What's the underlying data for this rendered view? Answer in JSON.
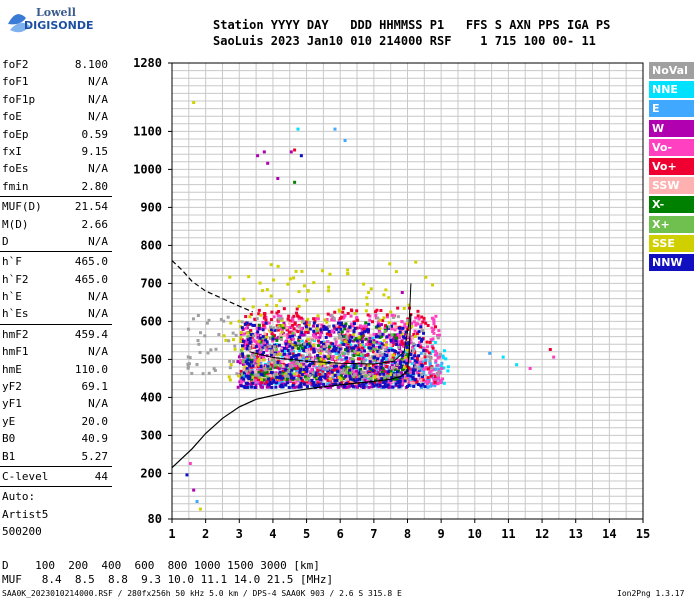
{
  "logo": {
    "line1": "Lowell",
    "line2": "DIGISONDE"
  },
  "header": {
    "line1": "Station YYYY DAY   DDD HHMMSS P1   FFS S AXN PPS IGA PS",
    "line2": "SaoLuis 2023 Jan10 010 214000 RSF    1 715 100 00- 11"
  },
  "params": {
    "group1": [
      {
        "label": "foF2",
        "value": "8.100"
      },
      {
        "label": "foF1",
        "value": "N/A"
      },
      {
        "label": "foF1p",
        "value": "N/A"
      },
      {
        "label": "foE",
        "value": "N/A"
      },
      {
        "label": "foEp",
        "value": "0.59"
      },
      {
        "label": "fxI",
        "value": "9.15"
      },
      {
        "label": "foEs",
        "value": "N/A"
      },
      {
        "label": "fmin",
        "value": "2.80"
      }
    ],
    "group2": [
      {
        "label": "MUF(D)",
        "value": "21.54"
      },
      {
        "label": "M(D)",
        "value": "2.66"
      },
      {
        "label": "D",
        "value": "N/A"
      }
    ],
    "group3": [
      {
        "label": "h`F",
        "value": "465.0"
      },
      {
        "label": "h`F2",
        "value": "465.0"
      },
      {
        "label": "h`E",
        "value": "N/A"
      },
      {
        "label": "h`Es",
        "value": "N/A"
      }
    ],
    "group4": [
      {
        "label": "hmF2",
        "value": "459.4"
      },
      {
        "label": "hmF1",
        "value": "N/A"
      },
      {
        "label": "hmE",
        "value": "110.0"
      },
      {
        "label": "yF2",
        "value": "69.1"
      },
      {
        "label": "yF1",
        "value": "N/A"
      },
      {
        "label": "yE",
        "value": "20.0"
      },
      {
        "label": "B0",
        "value": "40.9"
      },
      {
        "label": "B1",
        "value": "5.27"
      }
    ],
    "group5": [
      {
        "label": "C-level",
        "value": "44"
      }
    ],
    "auto": [
      "Auto:",
      "Artist5",
      "500200"
    ]
  },
  "legend": [
    {
      "label": "NoVal",
      "color": "#a0a0a0"
    },
    {
      "label": "NNE",
      "color": "#00e0ff"
    },
    {
      "label": "E",
      "color": "#40a8ff"
    },
    {
      "label": "W",
      "color": "#b000b0"
    },
    {
      "label": "Vo-",
      "color": "#ff40c0"
    },
    {
      "label": "Vo+",
      "color": "#f00030"
    },
    {
      "label": "SSW",
      "color": "#ffb0b0"
    },
    {
      "label": "X-",
      "color": "#008000"
    },
    {
      "label": "X+",
      "color": "#70c050"
    },
    {
      "label": "SSE",
      "color": "#d0d000"
    },
    {
      "label": "NNW",
      "color": "#1010c0"
    }
  ],
  "footer": {
    "d_row": "D    100  200  400  600  800 1000 1500 3000 [km]",
    "muf_row": "MUF   8.4  8.5  8.8  9.3 10.0 11.1 14.0 21.5 [MHz]",
    "file_info": "SAA0K_2023010214000.RSF / 280fx256h 50 kHz 5.0 km / DPS-4 SAA0K 903 / 2.6 S 315.8 E",
    "version": "Ion2Png 1.3.17"
  },
  "chart_data": {
    "type": "scatter",
    "xlim": [
      1,
      15
    ],
    "ylim": [
      80,
      1280
    ],
    "xticks": [
      1,
      2,
      3,
      4,
      5,
      6,
      7,
      8,
      9,
      10,
      11,
      12,
      13,
      14,
      15
    ],
    "yticks": [
      80,
      200,
      300,
      400,
      500,
      600,
      700,
      800,
      900,
      1000,
      1100,
      1280
    ],
    "grid": true,
    "clusters": [
      {
        "name": "NNE",
        "color": "#00e0ff",
        "x0": 3.0,
        "x1": 9.2,
        "y0": 440,
        "y1": 560,
        "n": 260
      },
      {
        "name": "E",
        "color": "#40a8ff",
        "x0": 3.2,
        "x1": 9.0,
        "y0": 430,
        "y1": 520,
        "n": 260
      },
      {
        "name": "W",
        "color": "#b000b0",
        "x0": 2.9,
        "x1": 8.0,
        "y0": 430,
        "y1": 600,
        "n": 420
      },
      {
        "name": "Vo-",
        "color": "#ff40c0",
        "x0": 3.0,
        "x1": 9.0,
        "y0": 440,
        "y1": 620,
        "n": 520
      },
      {
        "name": "Vo+",
        "color": "#f00030",
        "x0": 3.0,
        "x1": 8.8,
        "y0": 440,
        "y1": 640,
        "n": 320
      },
      {
        "name": "SSW",
        "color": "#ffb0b0",
        "x0": 3.0,
        "x1": 8.5,
        "y0": 440,
        "y1": 600,
        "n": 160
      },
      {
        "name": "X-",
        "color": "#008000",
        "x0": 3.2,
        "x1": 8.0,
        "y0": 450,
        "y1": 600,
        "n": 120
      },
      {
        "name": "X+",
        "color": "#70c050",
        "x0": 3.0,
        "x1": 7.5,
        "y0": 450,
        "y1": 580,
        "n": 80
      },
      {
        "name": "SSE",
        "color": "#d0d000",
        "x0": 2.5,
        "x1": 8.2,
        "y0": 450,
        "y1": 760,
        "n": 160
      },
      {
        "name": "NNW",
        "color": "#1010c0",
        "x0": 3.0,
        "x1": 8.5,
        "y0": 430,
        "y1": 600,
        "n": 420
      },
      {
        "name": "NoVal",
        "color": "#a0a0a0",
        "x0": 1.4,
        "x1": 9.0,
        "y0": 460,
        "y1": 620,
        "n": 140
      }
    ],
    "sparse_points": [
      {
        "x": 1.6,
        "y": 1180,
        "color": "#d0d000"
      },
      {
        "x": 3.5,
        "y": 1040,
        "color": "#b000b0"
      },
      {
        "x": 3.7,
        "y": 1050,
        "color": "#b000b0"
      },
      {
        "x": 3.8,
        "y": 1020,
        "color": "#b000b0"
      },
      {
        "x": 4.1,
        "y": 980,
        "color": "#b000b0"
      },
      {
        "x": 4.5,
        "y": 1050,
        "color": "#b000b0"
      },
      {
        "x": 4.6,
        "y": 1055,
        "color": "#f00030"
      },
      {
        "x": 4.7,
        "y": 1110,
        "color": "#00e0ff"
      },
      {
        "x": 4.8,
        "y": 1040,
        "color": "#1010c0"
      },
      {
        "x": 4.6,
        "y": 970,
        "color": "#008000"
      },
      {
        "x": 5.8,
        "y": 1110,
        "color": "#40a8ff"
      },
      {
        "x": 6.1,
        "y": 1080,
        "color": "#40a8ff"
      },
      {
        "x": 1.4,
        "y": 200,
        "color": "#1010c0"
      },
      {
        "x": 1.6,
        "y": 160,
        "color": "#b000b0"
      },
      {
        "x": 1.7,
        "y": 130,
        "color": "#40a8ff"
      },
      {
        "x": 1.8,
        "y": 110,
        "color": "#d0d000"
      },
      {
        "x": 1.5,
        "y": 230,
        "color": "#ff40c0"
      },
      {
        "x": 10.4,
        "y": 520,
        "color": "#40a8ff"
      },
      {
        "x": 10.8,
        "y": 510,
        "color": "#00e0ff"
      },
      {
        "x": 11.2,
        "y": 490,
        "color": "#00e0ff"
      },
      {
        "x": 11.6,
        "y": 480,
        "color": "#ff40c0"
      },
      {
        "x": 12.2,
        "y": 530,
        "color": "#f00030"
      },
      {
        "x": 12.3,
        "y": 510,
        "color": "#ff40c0"
      },
      {
        "x": 8.2,
        "y": 760,
        "color": "#d0d000"
      },
      {
        "x": 8.5,
        "y": 720,
        "color": "#d0d000"
      },
      {
        "x": 8.7,
        "y": 700,
        "color": "#d0d000"
      },
      {
        "x": 7.8,
        "y": 680,
        "color": "#b000b0"
      },
      {
        "x": 7.5,
        "y": 620,
        "color": "#ff40c0"
      }
    ],
    "profile_curve": {
      "x": [
        1.0,
        1.3,
        1.6,
        2.0,
        2.5,
        3.0,
        3.5,
        4.0,
        4.5,
        5.0,
        5.5,
        6.0,
        6.5,
        7.0,
        7.5,
        7.8,
        8.0,
        8.05,
        8.1
      ],
      "y": [
        215,
        240,
        265,
        305,
        345,
        375,
        395,
        405,
        415,
        422,
        428,
        433,
        438,
        442,
        448,
        455,
        470,
        520,
        620
      ]
    },
    "dashed_curve": {
      "x": [
        1.0,
        1.3,
        1.6,
        2.0,
        2.5,
        3.0,
        3.4
      ],
      "y": [
        760,
        735,
        705,
        680,
        660,
        640,
        625
      ]
    },
    "trace_path": {
      "x": [
        3.3,
        4.0,
        5.0,
        6.0,
        7.0,
        7.6,
        7.9,
        8.05,
        8.1
      ],
      "y": [
        520,
        505,
        495,
        490,
        488,
        495,
        520,
        600,
        700
      ]
    }
  }
}
